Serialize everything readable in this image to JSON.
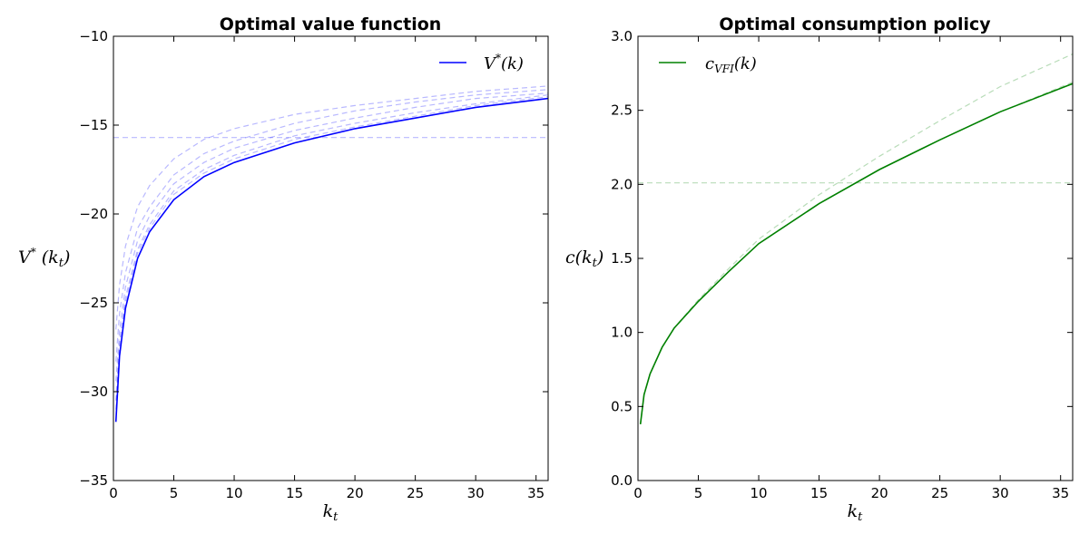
{
  "chart_data": [
    {
      "type": "line",
      "title": "Optimal value function",
      "xlabel": "k_t",
      "ylabel": "V* (k_t)",
      "xlim": [
        0,
        36
      ],
      "ylim": [
        -35,
        -10
      ],
      "xticks": [
        0,
        5,
        10,
        15,
        20,
        25,
        30,
        35
      ],
      "yticks": [
        -35,
        -30,
        -25,
        -20,
        -15,
        -10
      ],
      "grid": false,
      "legend_position": "top-right",
      "color": "#0000ff",
      "series": [
        {
          "name": "V*(k)",
          "style": "solid",
          "x": [
            0.2,
            0.5,
            1,
            2,
            3,
            5,
            7.5,
            10,
            15,
            20,
            25,
            30,
            36
          ],
          "y": [
            -31.7,
            -28.0,
            -25.3,
            -22.5,
            -21.0,
            -19.2,
            -17.9,
            -17.1,
            -16.0,
            -15.2,
            -14.6,
            -14.0,
            -13.5
          ]
        }
      ],
      "iterates": [
        {
          "style": "dashed",
          "x": [
            0,
            36
          ],
          "y": [
            -15.7,
            -15.7
          ]
        },
        {
          "style": "dashed",
          "x": [
            0.2,
            0.5,
            1,
            2,
            3,
            5,
            7.5,
            10,
            15,
            20,
            25,
            30,
            36
          ],
          "y": [
            -26.5,
            -24.0,
            -21.8,
            -19.6,
            -18.4,
            -16.9,
            -15.8,
            -15.2,
            -14.4,
            -13.9,
            -13.5,
            -13.1,
            -12.8
          ]
        },
        {
          "style": "dashed",
          "x": [
            0.2,
            0.5,
            1,
            2,
            3,
            5,
            7.5,
            10,
            15,
            20,
            25,
            30,
            36
          ],
          "y": [
            -28.3,
            -25.6,
            -23.3,
            -20.8,
            -19.6,
            -17.8,
            -16.6,
            -15.9,
            -14.9,
            -14.2,
            -13.7,
            -13.3,
            -13.0
          ]
        },
        {
          "style": "dashed",
          "x": [
            0.2,
            0.5,
            1,
            2,
            3,
            5,
            7.5,
            10,
            15,
            20,
            25,
            30,
            36
          ],
          "y": [
            -29.4,
            -26.6,
            -24.1,
            -21.5,
            -20.1,
            -18.3,
            -17.1,
            -16.3,
            -15.3,
            -14.6,
            -14.0,
            -13.5,
            -13.2
          ]
        },
        {
          "style": "dashed",
          "x": [
            0.2,
            0.5,
            1,
            2,
            3,
            5,
            7.5,
            10,
            15,
            20,
            25,
            30,
            36
          ],
          "y": [
            -30.5,
            -27.2,
            -24.7,
            -22.0,
            -20.6,
            -18.7,
            -17.5,
            -16.7,
            -15.6,
            -14.9,
            -14.3,
            -13.8,
            -13.3
          ]
        },
        {
          "style": "dashed",
          "x": [
            0.2,
            0.5,
            1,
            2,
            3,
            5,
            7.5,
            10,
            15,
            20,
            25,
            30,
            36
          ],
          "y": [
            -31.0,
            -27.6,
            -25.0,
            -22.2,
            -20.8,
            -18.9,
            -17.7,
            -16.9,
            -15.8,
            -15.1,
            -14.5,
            -13.9,
            -13.4
          ]
        }
      ]
    },
    {
      "type": "line",
      "title": "Optimal consumption policy",
      "xlabel": "k_t",
      "ylabel": "c(k_t)",
      "xlim": [
        0,
        36
      ],
      "ylim": [
        0,
        3
      ],
      "xticks": [
        0,
        5,
        10,
        15,
        20,
        25,
        30,
        35
      ],
      "yticks": [
        0.0,
        0.5,
        1.0,
        1.5,
        2.0,
        2.5,
        3.0
      ],
      "grid": false,
      "legend_position": "top-left",
      "color": "#008000",
      "series": [
        {
          "name": "c_VFI(k)",
          "style": "solid",
          "x": [
            0.2,
            0.5,
            1,
            2,
            3,
            5,
            7.5,
            10,
            15,
            20,
            25,
            30,
            36
          ],
          "y": [
            0.38,
            0.58,
            0.72,
            0.9,
            1.03,
            1.21,
            1.41,
            1.6,
            1.87,
            2.1,
            2.3,
            2.49,
            2.68
          ]
        }
      ],
      "iterates": [
        {
          "style": "dashed",
          "x": [
            0,
            36
          ],
          "y": [
            2.01,
            2.01
          ]
        },
        {
          "style": "dashed",
          "x": [
            0.2,
            0.5,
            1,
            2,
            3,
            5,
            7.5,
            10,
            15,
            20,
            25,
            30,
            36
          ],
          "y": [
            0.38,
            0.58,
            0.72,
            0.9,
            1.03,
            1.22,
            1.43,
            1.63,
            1.93,
            2.19,
            2.43,
            2.66,
            2.88
          ]
        },
        {
          "style": "dashed",
          "x": [
            0.2,
            0.5,
            1,
            2,
            3,
            5,
            7.5,
            10,
            15,
            20,
            25,
            30,
            36
          ],
          "y": [
            0.38,
            0.58,
            0.72,
            0.9,
            1.03,
            1.21,
            1.41,
            1.6,
            1.87,
            2.1,
            2.3,
            2.49,
            2.69
          ]
        }
      ]
    }
  ]
}
